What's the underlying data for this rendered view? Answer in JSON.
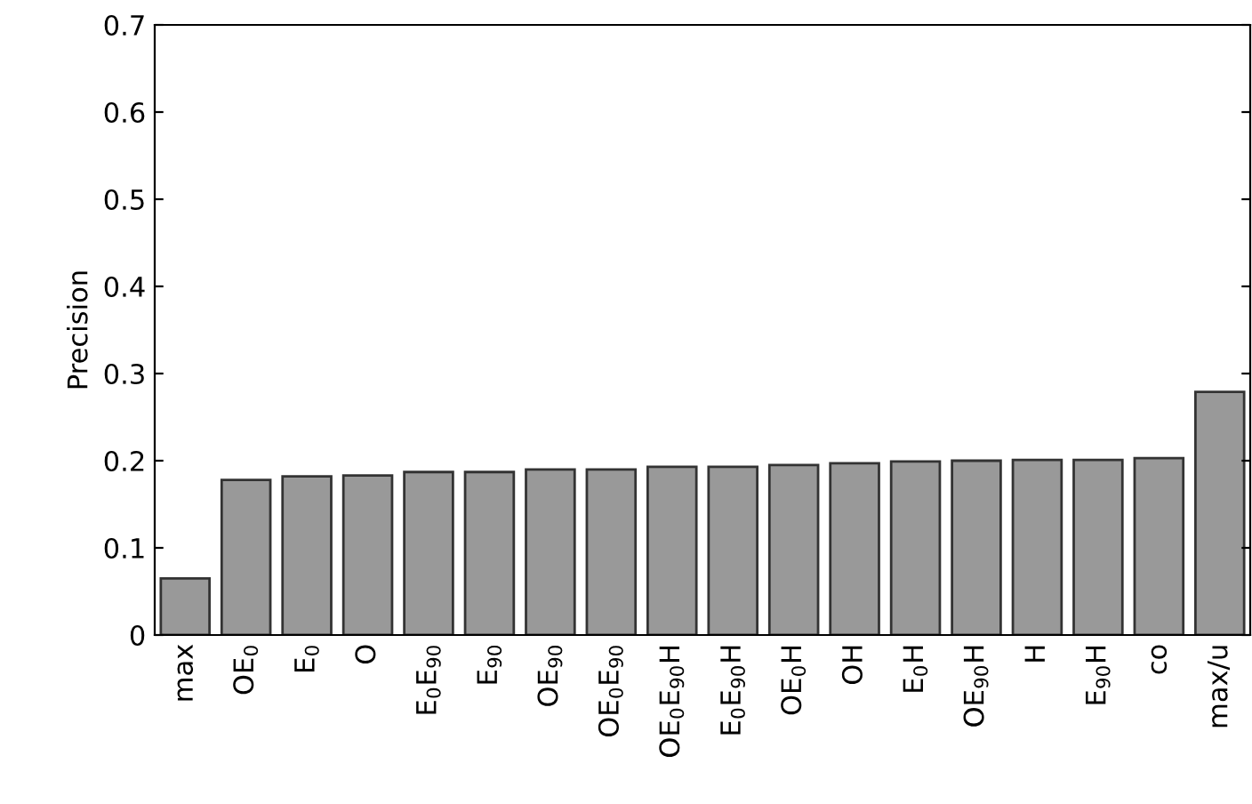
{
  "chart_data": {
    "type": "bar",
    "ylabel": "Precision",
    "categories": [
      "max",
      "OE$_{0}$",
      "E$_{0}$",
      "O",
      "E$_{0}$E$_{90}$",
      "E$_{90}$",
      "OE$_{90}$",
      "OE$_{0}$E$_{90}$",
      "OE$_{0}$E$_{90}$H",
      "E$_{0}$E$_{90}$H",
      "OE$_{0}$H",
      "OH",
      "E$_{0}$H",
      "OE$_{90}$H",
      "H",
      "E$_{90}$H",
      "co",
      "max/u"
    ],
    "values": [
      0.065,
      0.178,
      0.182,
      0.183,
      0.187,
      0.187,
      0.19,
      0.19,
      0.193,
      0.193,
      0.195,
      0.197,
      0.199,
      0.2,
      0.201,
      0.201,
      0.203,
      0.279
    ],
    "color": "#999999",
    "ylim": [
      0,
      0.7
    ],
    "yticks": [
      {
        "value": 0,
        "label": "0"
      },
      0.1,
      0.2,
      0.3,
      0.4,
      0.5,
      0.6,
      0.7
    ],
    "grid": false
  }
}
